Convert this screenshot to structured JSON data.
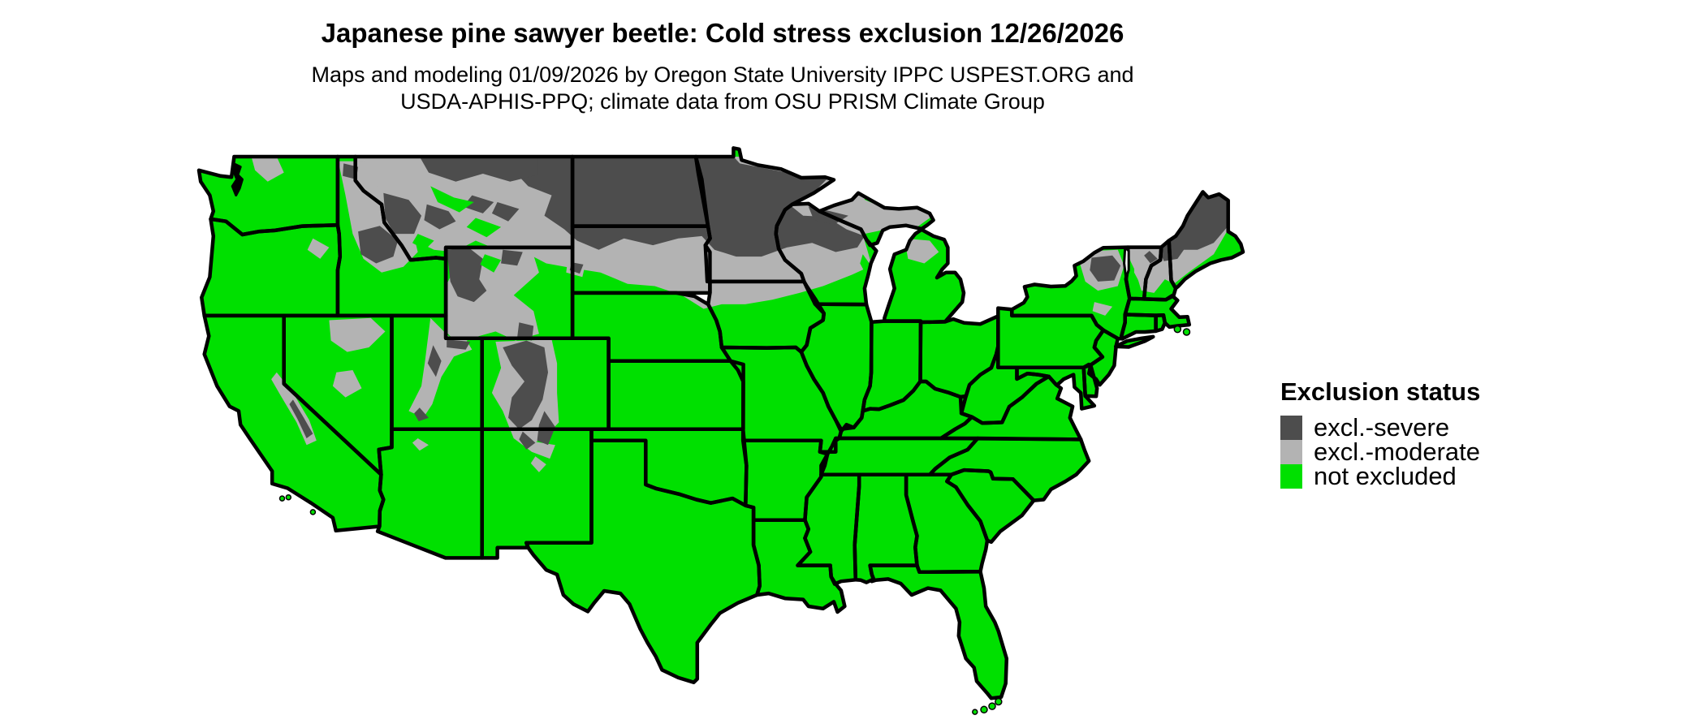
{
  "header": {
    "title": "Japanese pine sawyer beetle: Cold stress exclusion 12/26/2026",
    "subtitle_line1": "Maps and modeling 01/09/2026 by Oregon State University IPPC USPEST.ORG and",
    "subtitle_line2": "USDA-APHIS-PPQ; climate data from OSU PRISM Climate Group"
  },
  "legend": {
    "title": "Exclusion status",
    "items": [
      {
        "key": "severe",
        "label": "excl.-severe",
        "color": "#4D4D4D"
      },
      {
        "key": "moderate",
        "label": "excl.-moderate",
        "color": "#B3B3B3"
      },
      {
        "key": "not_excluded",
        "label": "not excluded",
        "color": "#00E000"
      }
    ]
  },
  "colors": {
    "severe": "#4D4D4D",
    "moderate": "#B3B3B3",
    "not_excluded": "#00E000",
    "state_border": "#000000",
    "water": "#FFFFFF",
    "background": "#FFFFFF"
  },
  "map": {
    "region": "Continental United States (lower 48 states)",
    "layer": "Cold stress exclusion category by location"
  }
}
